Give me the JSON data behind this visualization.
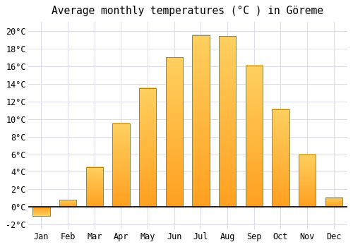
{
  "months": [
    "Jan",
    "Feb",
    "Mar",
    "Apr",
    "May",
    "Jun",
    "Jul",
    "Aug",
    "Sep",
    "Oct",
    "Nov",
    "Dec"
  ],
  "values": [
    -1.0,
    0.8,
    4.5,
    9.5,
    13.5,
    17.0,
    19.5,
    19.4,
    16.1,
    11.1,
    6.0,
    1.1
  ],
  "bar_color_top": "#FFD060",
  "bar_color_bottom": "#FFA020",
  "bar_color_neg_top": "#FFD060",
  "bar_color_neg_bottom": "#FFA020",
  "bar_edge_color": "#888855",
  "title": "Average monthly temperatures (°C ) in Göreme",
  "ylim": [
    -2.5,
    21.0
  ],
  "yticks": [
    -2,
    0,
    2,
    4,
    6,
    8,
    10,
    12,
    14,
    16,
    18,
    20
  ],
  "background_color": "#ffffff",
  "grid_color": "#ddddee",
  "title_fontsize": 10.5,
  "tick_fontsize": 8.5,
  "bar_width": 0.65
}
